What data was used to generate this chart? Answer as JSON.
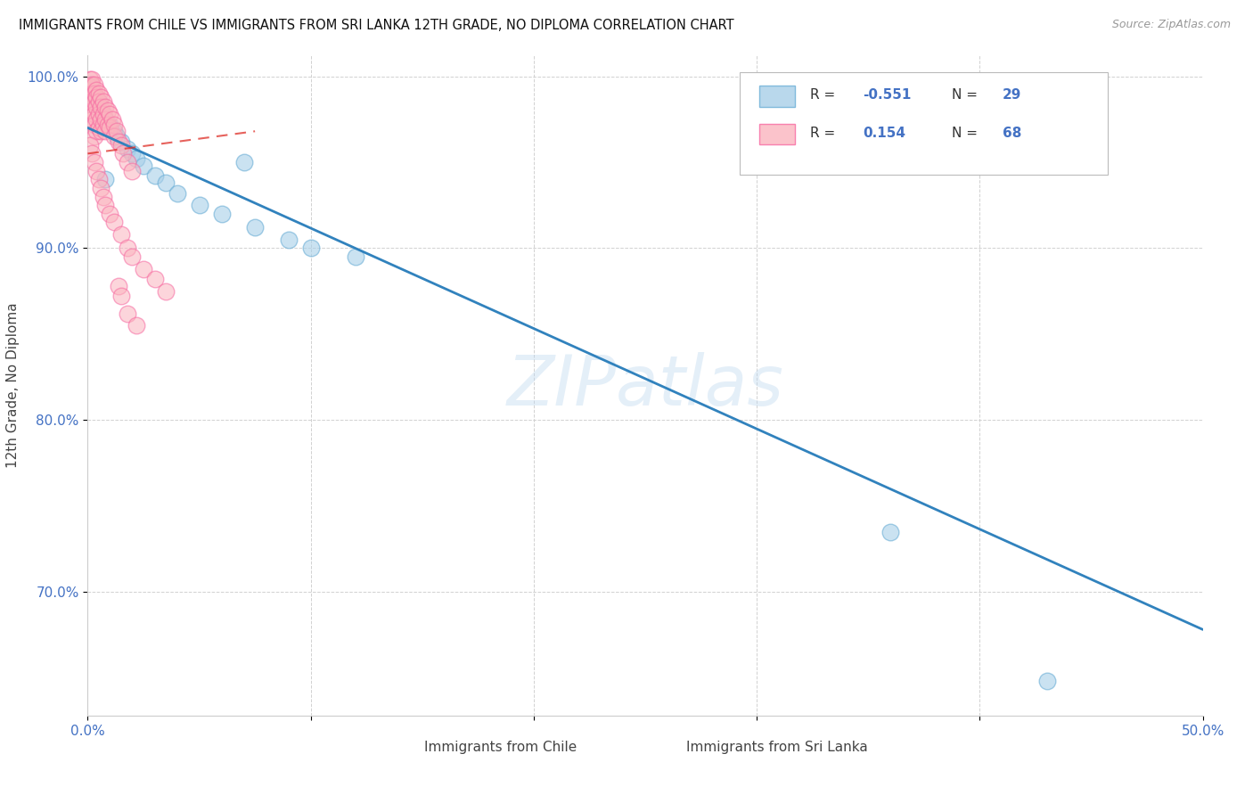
{
  "title": "IMMIGRANTS FROM CHILE VS IMMIGRANTS FROM SRI LANKA 12TH GRADE, NO DIPLOMA CORRELATION CHART",
  "source": "Source: ZipAtlas.com",
  "ylabel": "12th Grade, No Diploma",
  "x_label_chile": "Immigrants from Chile",
  "x_label_srilanka": "Immigrants from Sri Lanka",
  "xlim": [
    0.0,
    0.5
  ],
  "ylim": [
    0.628,
    1.012
  ],
  "xticks": [
    0.0,
    0.1,
    0.2,
    0.3,
    0.4,
    0.5
  ],
  "xtick_labels": [
    "0.0%",
    "",
    "",
    "",
    "",
    "50.0%"
  ],
  "yticks": [
    0.7,
    0.8,
    0.9,
    1.0
  ],
  "ytick_labels": [
    "70.0%",
    "80.0%",
    "90.0%",
    "100.0%"
  ],
  "chile_color": "#a8cfe8",
  "chile_edge_color": "#6baed6",
  "srilanka_color": "#fbb4be",
  "srilanka_edge_color": "#f768a1",
  "chile_line_color": "#3182bd",
  "srilanka_line_color": "#de2d26",
  "r_chile": -0.551,
  "n_chile": 29,
  "r_srilanka": 0.154,
  "n_srilanka": 68,
  "watermark": "ZIPatlas",
  "chile_trend_x0": 0.0,
  "chile_trend_y0": 0.97,
  "chile_trend_x1": 0.5,
  "chile_trend_y1": 0.678,
  "sri_trend_x0": 0.0,
  "sri_trend_y0": 0.955,
  "sri_trend_x1": 0.075,
  "sri_trend_y1": 0.968,
  "chile_scatter_x": [
    0.001,
    0.002,
    0.003,
    0.004,
    0.005,
    0.006,
    0.007,
    0.008,
    0.01,
    0.012,
    0.013,
    0.015,
    0.018,
    0.02,
    0.022,
    0.025,
    0.03,
    0.035,
    0.04,
    0.05,
    0.06,
    0.075,
    0.09,
    0.12,
    0.07,
    0.1,
    0.008,
    0.36,
    0.43
  ],
  "chile_scatter_y": [
    0.995,
    0.992,
    0.988,
    0.985,
    0.985,
    0.98,
    0.978,
    0.975,
    0.972,
    0.968,
    0.965,
    0.962,
    0.958,
    0.955,
    0.952,
    0.948,
    0.942,
    0.938,
    0.932,
    0.925,
    0.92,
    0.912,
    0.905,
    0.895,
    0.95,
    0.9,
    0.94,
    0.735,
    0.648
  ],
  "srilanka_scatter_x": [
    0.001,
    0.001,
    0.001,
    0.001,
    0.002,
    0.002,
    0.002,
    0.002,
    0.002,
    0.002,
    0.003,
    0.003,
    0.003,
    0.003,
    0.003,
    0.003,
    0.004,
    0.004,
    0.004,
    0.004,
    0.004,
    0.005,
    0.005,
    0.005,
    0.005,
    0.006,
    0.006,
    0.006,
    0.006,
    0.007,
    0.007,
    0.007,
    0.008,
    0.008,
    0.008,
    0.009,
    0.009,
    0.01,
    0.01,
    0.011,
    0.012,
    0.012,
    0.013,
    0.014,
    0.015,
    0.016,
    0.018,
    0.02,
    0.001,
    0.002,
    0.003,
    0.004,
    0.005,
    0.006,
    0.007,
    0.008,
    0.01,
    0.012,
    0.015,
    0.018,
    0.02,
    0.025,
    0.03,
    0.035,
    0.014,
    0.015,
    0.018,
    0.022
  ],
  "srilanka_scatter_y": [
    0.998,
    0.994,
    0.99,
    0.985,
    0.998,
    0.995,
    0.99,
    0.985,
    0.98,
    0.975,
    0.995,
    0.99,
    0.985,
    0.978,
    0.972,
    0.965,
    0.992,
    0.988,
    0.982,
    0.975,
    0.968,
    0.99,
    0.985,
    0.978,
    0.97,
    0.988,
    0.982,
    0.975,
    0.968,
    0.985,
    0.978,
    0.972,
    0.982,
    0.975,
    0.968,
    0.98,
    0.972,
    0.978,
    0.97,
    0.975,
    0.972,
    0.965,
    0.968,
    0.962,
    0.96,
    0.955,
    0.95,
    0.945,
    0.96,
    0.955,
    0.95,
    0.945,
    0.94,
    0.935,
    0.93,
    0.925,
    0.92,
    0.915,
    0.908,
    0.9,
    0.895,
    0.888,
    0.882,
    0.875,
    0.878,
    0.872,
    0.862,
    0.855
  ]
}
